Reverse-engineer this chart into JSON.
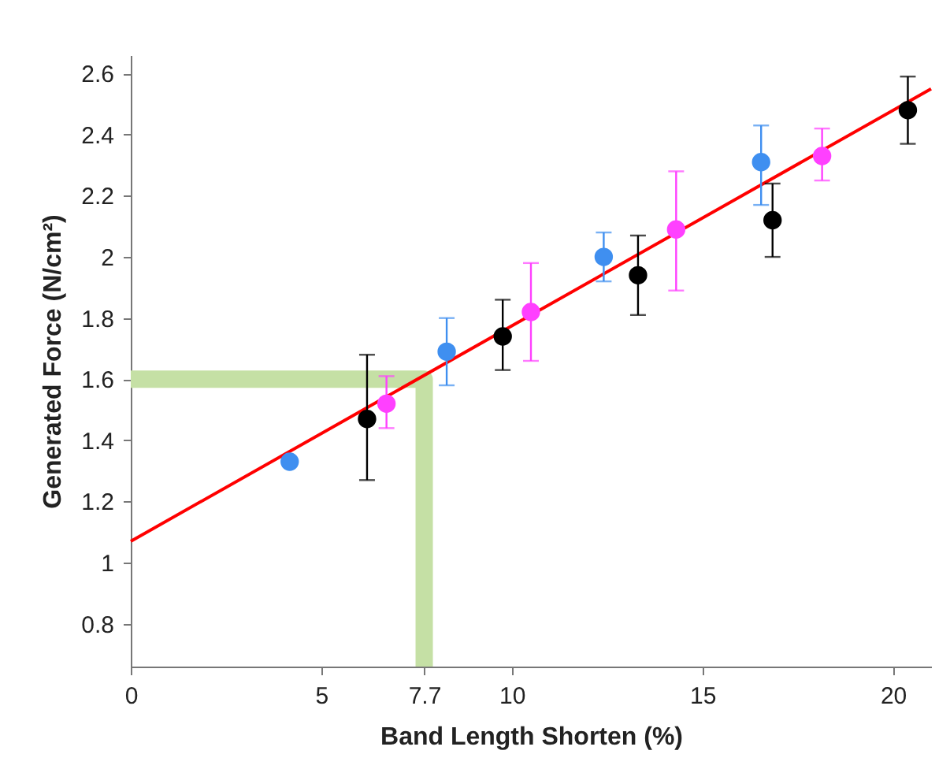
{
  "chart_data": {
    "type": "scatter",
    "xlabel": "Band Length Shorten (%)",
    "ylabel": "Generated Force (N/cm²)",
    "xlim": [
      0,
      21
    ],
    "xticks": [
      0,
      5,
      7.7,
      10,
      15,
      20
    ],
    "ylim": [
      0.66,
      2.66
    ],
    "yticks": [
      0.8,
      1,
      1.2,
      1.4,
      1.6,
      1.8,
      2,
      2.2,
      2.4,
      2.6
    ],
    "grid": false,
    "marker": "circle",
    "series": [
      {
        "type": "line",
        "marker": "none",
        "color": "#c5e0a5",
        "x": [
          0,
          7.7,
          7.7
        ],
        "values": [
          1.6,
          1.6,
          0.66
        ]
      },
      {
        "type": "line",
        "marker": "none",
        "color": "#ff0000",
        "x": [
          0,
          21
        ],
        "values": [
          1.07,
          2.55
        ]
      },
      {
        "color": "#3f8ff0",
        "x": [
          4.17,
          8.29,
          12.41,
          16.54
        ],
        "values": [
          1.33,
          1.69,
          2.0,
          2.31
        ],
        "errors": [
          null,
          [
            1.58,
            1.8
          ],
          [
            1.92,
            2.08
          ],
          [
            2.17,
            2.43
          ]
        ]
      },
      {
        "color": "#000000",
        "x": [
          6.2,
          9.76,
          13.31,
          16.84,
          20.39
        ],
        "values": [
          1.47,
          1.74,
          1.94,
          2.12,
          2.48
        ],
        "errors": [
          [
            1.27,
            1.68
          ],
          [
            1.63,
            1.86
          ],
          [
            1.81,
            2.07
          ],
          [
            2.0,
            2.24
          ],
          [
            2.37,
            2.59
          ]
        ]
      },
      {
        "color": "#ff40ff",
        "x": [
          6.71,
          10.5,
          14.31,
          18.14
        ],
        "values": [
          1.52,
          1.82,
          2.09,
          2.33
        ],
        "errors": [
          [
            1.44,
            1.61
          ],
          [
            1.66,
            1.98
          ],
          [
            1.89,
            2.28
          ],
          [
            2.25,
            2.42
          ]
        ]
      }
    ]
  }
}
